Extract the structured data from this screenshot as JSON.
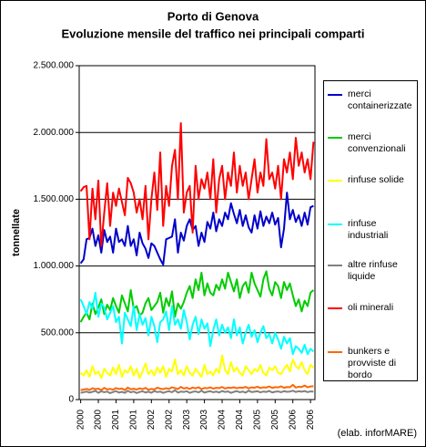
{
  "chart_data": {
    "type": "line",
    "title": "Porto di Genova",
    "subtitle": "Evoluzione mensile del traffico nei principali comparti",
    "y_label": "tonnellate",
    "annotation": "(elab. inforMARE)",
    "grid": true,
    "ylim": [
      0,
      2500000
    ],
    "yticks": [
      {
        "value": 0,
        "label": "0"
      },
      {
        "value": 500000,
        "label": "500.000"
      },
      {
        "value": 1000000,
        "label": "1.000.000"
      },
      {
        "value": 1500000,
        "label": "1.500.000"
      },
      {
        "value": 2000000,
        "label": "2.000.000"
      },
      {
        "value": 2500000,
        "label": "2.500.000"
      }
    ],
    "categories": [
      "2000",
      null,
      null,
      null,
      null,
      null,
      "2000",
      null,
      null,
      null,
      null,
      null,
      "2001",
      null,
      null,
      null,
      null,
      null,
      "2001",
      null,
      null,
      null,
      null,
      null,
      "2002",
      null,
      null,
      null,
      null,
      null,
      "2002",
      null,
      null,
      null,
      null,
      null,
      "2003",
      null,
      null,
      null,
      null,
      null,
      "2003",
      null,
      null,
      null,
      null,
      null,
      "2004",
      null,
      null,
      null,
      null,
      null,
      "2004",
      null,
      null,
      null,
      null,
      null,
      "2005",
      null,
      null,
      null,
      null,
      null,
      "2005",
      null,
      null,
      null,
      null,
      null,
      "2006",
      null,
      null,
      null,
      null,
      null,
      "2006",
      null
    ],
    "series": [
      {
        "name": "merci containerizzate",
        "color": "#0000cc",
        "values": [
          1020000,
          1050000,
          1200000,
          1210000,
          1280000,
          1150000,
          1230000,
          1100000,
          1270000,
          1180000,
          1220000,
          1100000,
          1280000,
          1180000,
          1200000,
          1150000,
          1300000,
          1150000,
          1200000,
          1080000,
          1250000,
          1170000,
          1130000,
          1060000,
          1170000,
          1150000,
          1100000,
          1050000,
          1010000,
          1200000,
          1210000,
          1220000,
          1350000,
          1100000,
          1250000,
          1190000,
          1300000,
          1350000,
          1270000,
          1300000,
          1150000,
          1250000,
          1180000,
          1330000,
          1280000,
          1400000,
          1260000,
          1350000,
          1300000,
          1400000,
          1350000,
          1470000,
          1390000,
          1320000,
          1420000,
          1300000,
          1380000,
          1290000,
          1250000,
          1380000,
          1280000,
          1410000,
          1300000,
          1370000,
          1320000,
          1400000,
          1310000,
          1360000,
          1140000,
          1280000,
          1550000,
          1350000,
          1420000,
          1330000,
          1380000,
          1300000,
          1400000,
          1310000,
          1440000,
          1450000
        ]
      },
      {
        "name": "merci convenzionali",
        "color": "#00cc00",
        "values": [
          580000,
          620000,
          650000,
          600000,
          720000,
          640000,
          690000,
          750000,
          640000,
          710000,
          670000,
          760000,
          700000,
          650000,
          780000,
          720000,
          660000,
          820000,
          680000,
          700000,
          630000,
          650000,
          720000,
          760000,
          670000,
          700000,
          730000,
          800000,
          650000,
          760000,
          700000,
          810000,
          620000,
          720000,
          680000,
          730000,
          800000,
          850000,
          760000,
          900000,
          820000,
          950000,
          780000,
          870000,
          800000,
          780000,
          860000,
          820000,
          900000,
          830000,
          950000,
          880000,
          810000,
          900000,
          760000,
          850000,
          880000,
          800000,
          950000,
          870000,
          820000,
          770000,
          900000,
          960000,
          830000,
          780000,
          880000,
          850000,
          760000,
          880000,
          820000,
          870000,
          780000,
          700000,
          750000,
          660000,
          740000,
          700000,
          800000,
          820000
        ]
      },
      {
        "name": "rinfuse solide",
        "color": "#ffff00",
        "values": [
          200000,
          180000,
          220000,
          170000,
          250000,
          190000,
          210000,
          160000,
          230000,
          200000,
          180000,
          240000,
          190000,
          260000,
          170000,
          220000,
          200000,
          250000,
          180000,
          230000,
          160000,
          210000,
          270000,
          190000,
          220000,
          180000,
          240000,
          200000,
          250000,
          170000,
          230000,
          210000,
          300000,
          190000,
          220000,
          180000,
          250000,
          200000,
          180000,
          230000,
          200000,
          170000,
          260000,
          190000,
          210000,
          180000,
          230000,
          200000,
          330000,
          220000,
          190000,
          280000,
          210000,
          240000,
          200000,
          180000,
          250000,
          220000,
          190000,
          230000,
          210000,
          260000,
          200000,
          180000,
          240000,
          220000,
          250000,
          200000,
          190000,
          230000,
          260000,
          210000,
          300000,
          250000,
          230000,
          280000,
          220000,
          190000,
          260000,
          240000
        ]
      },
      {
        "name": "rinfuse industriali",
        "color": "#00ffff",
        "values": [
          750000,
          700000,
          640000,
          730000,
          680000,
          800000,
          620000,
          720000,
          690000,
          600000,
          650000,
          700000,
          580000,
          620000,
          420000,
          650000,
          600000,
          550000,
          700000,
          520000,
          640000,
          560000,
          610000,
          480000,
          620000,
          550000,
          430000,
          580000,
          600000,
          660000,
          520000,
          700000,
          560000,
          600000,
          530000,
          670000,
          580000,
          450000,
          560000,
          620000,
          490000,
          600000,
          530000,
          570000,
          400000,
          520000,
          600000,
          480000,
          560000,
          500000,
          540000,
          460000,
          600000,
          480000,
          540000,
          420000,
          500000,
          560000,
          470000,
          520000,
          430000,
          500000,
          550000,
          460000,
          490000,
          420000,
          500000,
          450000,
          380000,
          470000,
          420000,
          460000,
          340000,
          400000,
          380000,
          350000,
          410000,
          340000,
          380000,
          360000
        ]
      },
      {
        "name": "altre rinfuse liquide",
        "color": "#808080",
        "values": [
          50000,
          55000,
          60000,
          52000,
          58000,
          65000,
          50000,
          62000,
          55000,
          60000,
          48000,
          57000,
          63000,
          52000,
          58000,
          50000,
          66000,
          54000,
          60000,
          49000,
          57000,
          62000,
          53000,
          59000,
          51000,
          64000,
          56000,
          60000,
          50000,
          58000,
          62000,
          55000,
          70000,
          52000,
          60000,
          57000,
          63000,
          50000,
          58000,
          61000,
          54000,
          66000,
          52000,
          59000,
          62000,
          55000,
          60000,
          53000,
          64000,
          57000,
          61000,
          50000,
          58000,
          63000,
          55000,
          60000,
          52000,
          67000,
          56000,
          59000,
          62000,
          54000,
          60000,
          57000,
          65000,
          53000,
          59000,
          61000,
          55000,
          63000,
          58000,
          60000,
          66000,
          57000,
          62000,
          59000,
          64000,
          56000,
          61000,
          60000
        ]
      },
      {
        "name": "oli minerali",
        "color": "#ff0000",
        "values": [
          1560000,
          1590000,
          1600000,
          1200000,
          1580000,
          1350000,
          1640000,
          1150000,
          1400000,
          1620000,
          1300000,
          1550000,
          1450000,
          1580000,
          1480000,
          1380000,
          1660000,
          1620000,
          1550000,
          1400000,
          1500000,
          1350000,
          1600000,
          1200000,
          1500000,
          1700000,
          1420000,
          1850000,
          1300000,
          1600000,
          1450000,
          1750000,
          1870000,
          1500000,
          2070000,
          1400000,
          1550000,
          1600000,
          1250000,
          1750000,
          1500000,
          1650000,
          1580000,
          1700000,
          1500000,
          1800000,
          1400000,
          1650000,
          1750000,
          1500000,
          1700000,
          1600000,
          1850000,
          1550000,
          1750000,
          1600000,
          1700000,
          1500000,
          1650000,
          1800000,
          1550000,
          1700000,
          1600000,
          1950000,
          1650000,
          1700000,
          1580000,
          1750000,
          1500000,
          1800000,
          1700000,
          1850000,
          1650000,
          1960000,
          1750000,
          1850000,
          1700000,
          1800000,
          1650000,
          1930000
        ]
      },
      {
        "name": "bunkers e provviste di bordo",
        "color": "#ff6600",
        "values": [
          70000,
          75000,
          80000,
          72000,
          85000,
          78000,
          82000,
          70000,
          88000,
          76000,
          80000,
          74000,
          86000,
          79000,
          83000,
          71000,
          90000,
          77000,
          81000,
          75000,
          84000,
          78000,
          87000,
          73000,
          80000,
          76000,
          89000,
          82000,
          78000,
          85000,
          80000,
          92000,
          86000,
          79000,
          95000,
          83000,
          88000,
          80000,
          90000,
          84000,
          92000,
          78000,
          87000,
          85000,
          91000,
          82000,
          88000,
          86000,
          94000,
          83000,
          89000,
          87000,
          92000,
          85000,
          90000,
          88000,
          95000,
          84000,
          91000,
          89000,
          96000,
          86000,
          92000,
          90000,
          98000,
          87000,
          93000,
          91000,
          99000,
          88000,
          94000,
          92000,
          110000,
          90000,
          96000,
          94000,
          105000,
          92000,
          98000,
          100000
        ]
      }
    ]
  }
}
